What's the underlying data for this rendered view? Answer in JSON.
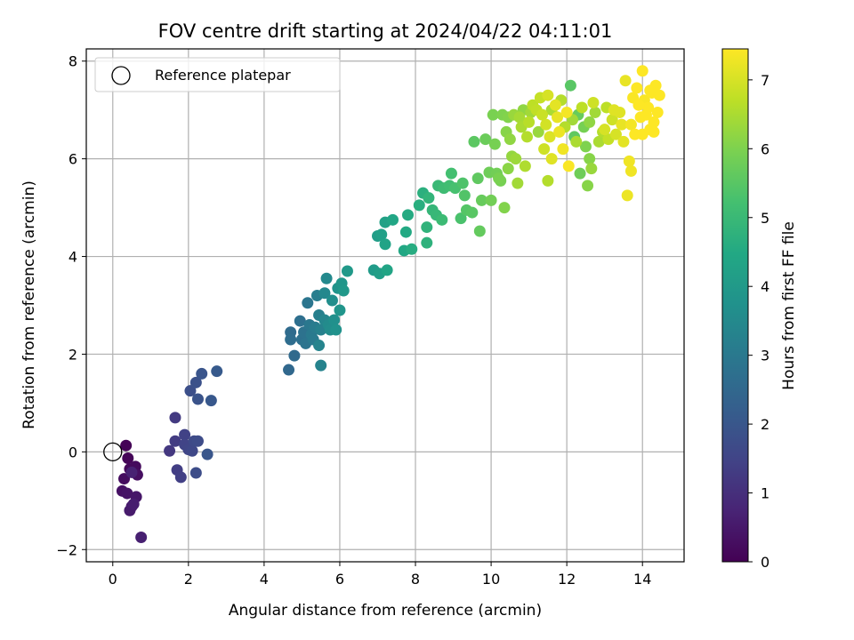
{
  "chart_data": {
    "type": "scatter",
    "title": "FOV centre drift starting at 2024/04/22 04:11:01",
    "xlabel": "Angular distance from reference (arcmin)",
    "ylabel": "Rotation from reference (arcmin)",
    "xlim": [
      -0.7,
      15.1
    ],
    "ylim": [
      -2.25,
      8.25
    ],
    "xticks": [
      0,
      2,
      4,
      6,
      8,
      10,
      12,
      14
    ],
    "yticks": [
      -2,
      0,
      2,
      4,
      6,
      8
    ],
    "grid": true,
    "legend": {
      "placement": "top-left",
      "entries": [
        "Reference platepar"
      ]
    },
    "reference_point": {
      "x": 0,
      "y": 0,
      "label": "Reference platepar"
    },
    "colorbar": {
      "label": "Hours from first FF file",
      "colormap": "viridis",
      "range": [
        0,
        7.45
      ],
      "ticks": [
        0,
        1,
        2,
        3,
        4,
        5,
        6,
        7
      ]
    },
    "series": [
      {
        "color_by": "hours",
        "points": [
          {
            "x": 0.35,
            "y": 0.13,
            "h": 0.05
          },
          {
            "x": 0.4,
            "y": -0.13,
            "h": 0.1
          },
          {
            "x": 0.45,
            "y": -0.35,
            "h": 0.15
          },
          {
            "x": 0.6,
            "y": -0.3,
            "h": 0.2
          },
          {
            "x": 0.3,
            "y": -0.55,
            "h": 0.25
          },
          {
            "x": 0.65,
            "y": -0.47,
            "h": 0.3
          },
          {
            "x": 0.25,
            "y": -0.8,
            "h": 0.35
          },
          {
            "x": 0.38,
            "y": -0.85,
            "h": 0.4
          },
          {
            "x": 0.62,
            "y": -0.92,
            "h": 0.45
          },
          {
            "x": 0.5,
            "y": -1.12,
            "h": 0.5
          },
          {
            "x": 0.45,
            "y": -1.2,
            "h": 0.55
          },
          {
            "x": 0.55,
            "y": -1.07,
            "h": 0.6
          },
          {
            "x": 0.75,
            "y": -1.75,
            "h": 0.65
          },
          {
            "x": 0.5,
            "y": -0.42,
            "h": 0.7
          },
          {
            "x": 1.5,
            "y": 0.02,
            "h": 1.2
          },
          {
            "x": 1.65,
            "y": 0.7,
            "h": 1.25
          },
          {
            "x": 1.65,
            "y": 0.22,
            "h": 1.3
          },
          {
            "x": 1.7,
            "y": -0.37,
            "h": 1.35
          },
          {
            "x": 1.8,
            "y": -0.52,
            "h": 1.4
          },
          {
            "x": 1.9,
            "y": 0.35,
            "h": 1.45
          },
          {
            "x": 1.9,
            "y": 0.15,
            "h": 1.5
          },
          {
            "x": 2.0,
            "y": 0.05,
            "h": 1.55
          },
          {
            "x": 2.1,
            "y": 0.02,
            "h": 1.6
          },
          {
            "x": 2.15,
            "y": 0.22,
            "h": 1.65
          },
          {
            "x": 2.25,
            "y": 0.22,
            "h": 1.7
          },
          {
            "x": 2.2,
            "y": -0.43,
            "h": 1.75
          },
          {
            "x": 2.05,
            "y": 1.25,
            "h": 1.8
          },
          {
            "x": 2.2,
            "y": 1.42,
            "h": 1.85
          },
          {
            "x": 2.25,
            "y": 1.08,
            "h": 1.9
          },
          {
            "x": 2.35,
            "y": 1.6,
            "h": 1.95
          },
          {
            "x": 2.5,
            "y": -0.05,
            "h": 2.0
          },
          {
            "x": 2.6,
            "y": 1.05,
            "h": 2.05
          },
          {
            "x": 2.75,
            "y": 1.65,
            "h": 2.1
          },
          {
            "x": 4.65,
            "y": 1.68,
            "h": 2.5
          },
          {
            "x": 4.8,
            "y": 1.97,
            "h": 2.55
          },
          {
            "x": 4.7,
            "y": 2.45,
            "h": 2.6
          },
          {
            "x": 4.7,
            "y": 2.3,
            "h": 2.65
          },
          {
            "x": 4.95,
            "y": 2.68,
            "h": 2.7
          },
          {
            "x": 5.0,
            "y": 2.3,
            "h": 2.75
          },
          {
            "x": 5.05,
            "y": 2.45,
            "h": 2.8
          },
          {
            "x": 5.1,
            "y": 2.22,
            "h": 2.85
          },
          {
            "x": 5.15,
            "y": 3.05,
            "h": 2.9
          },
          {
            "x": 5.2,
            "y": 2.6,
            "h": 2.95
          },
          {
            "x": 5.25,
            "y": 2.4,
            "h": 3.0
          },
          {
            "x": 5.3,
            "y": 2.3,
            "h": 3.05
          },
          {
            "x": 5.35,
            "y": 2.55,
            "h": 3.1
          },
          {
            "x": 5.4,
            "y": 3.2,
            "h": 3.15
          },
          {
            "x": 5.45,
            "y": 2.8,
            "h": 3.2
          },
          {
            "x": 5.5,
            "y": 2.5,
            "h": 3.25
          },
          {
            "x": 5.5,
            "y": 1.77,
            "h": 3.3
          },
          {
            "x": 5.45,
            "y": 2.18,
            "h": 3.35
          },
          {
            "x": 5.6,
            "y": 2.7,
            "h": 3.4
          },
          {
            "x": 5.6,
            "y": 3.25,
            "h": 3.45
          },
          {
            "x": 5.65,
            "y": 3.55,
            "h": 3.5
          },
          {
            "x": 5.7,
            "y": 2.6,
            "h": 3.55
          },
          {
            "x": 5.75,
            "y": 2.5,
            "h": 3.6
          },
          {
            "x": 5.8,
            "y": 3.1,
            "h": 3.65
          },
          {
            "x": 5.85,
            "y": 2.7,
            "h": 3.7
          },
          {
            "x": 5.9,
            "y": 2.5,
            "h": 3.75
          },
          {
            "x": 5.95,
            "y": 3.35,
            "h": 3.8
          },
          {
            "x": 6.0,
            "y": 2.9,
            "h": 3.85
          },
          {
            "x": 6.05,
            "y": 3.45,
            "h": 3.9
          },
          {
            "x": 6.1,
            "y": 3.3,
            "h": 3.95
          },
          {
            "x": 6.2,
            "y": 3.7,
            "h": 4.0
          },
          {
            "x": 6.9,
            "y": 3.72,
            "h": 4.05
          },
          {
            "x": 7.0,
            "y": 4.42,
            "h": 4.1
          },
          {
            "x": 7.05,
            "y": 3.65,
            "h": 4.15
          },
          {
            "x": 7.1,
            "y": 4.45,
            "h": 4.2
          },
          {
            "x": 7.2,
            "y": 4.7,
            "h": 4.25
          },
          {
            "x": 7.2,
            "y": 4.25,
            "h": 4.3
          },
          {
            "x": 7.25,
            "y": 3.72,
            "h": 4.35
          },
          {
            "x": 7.4,
            "y": 4.75,
            "h": 4.4
          },
          {
            "x": 7.7,
            "y": 4.12,
            "h": 4.45
          },
          {
            "x": 7.75,
            "y": 4.5,
            "h": 4.5
          },
          {
            "x": 7.8,
            "y": 4.85,
            "h": 4.55
          },
          {
            "x": 7.9,
            "y": 4.15,
            "h": 4.6
          },
          {
            "x": 8.1,
            "y": 5.05,
            "h": 4.65
          },
          {
            "x": 8.2,
            "y": 5.3,
            "h": 4.7
          },
          {
            "x": 8.3,
            "y": 4.28,
            "h": 4.75
          },
          {
            "x": 8.3,
            "y": 4.6,
            "h": 4.8
          },
          {
            "x": 8.35,
            "y": 5.2,
            "h": 4.85
          },
          {
            "x": 8.45,
            "y": 4.95,
            "h": 4.9
          },
          {
            "x": 8.55,
            "y": 4.85,
            "h": 4.95
          },
          {
            "x": 8.6,
            "y": 5.45,
            "h": 5.0
          },
          {
            "x": 8.7,
            "y": 4.75,
            "h": 5.05
          },
          {
            "x": 8.75,
            "y": 5.4,
            "h": 5.1
          },
          {
            "x": 8.9,
            "y": 5.45,
            "h": 5.15
          },
          {
            "x": 8.95,
            "y": 5.7,
            "h": 5.2
          },
          {
            "x": 9.05,
            "y": 5.4,
            "h": 5.25
          },
          {
            "x": 9.2,
            "y": 4.78,
            "h": 5.3
          },
          {
            "x": 9.25,
            "y": 5.5,
            "h": 5.35
          },
          {
            "x": 9.3,
            "y": 5.25,
            "h": 5.4
          },
          {
            "x": 9.35,
            "y": 4.95,
            "h": 5.45
          },
          {
            "x": 9.5,
            "y": 4.9,
            "h": 5.5
          },
          {
            "x": 9.55,
            "y": 6.35,
            "h": 5.55
          },
          {
            "x": 9.65,
            "y": 5.6,
            "h": 5.6
          },
          {
            "x": 9.7,
            "y": 4.52,
            "h": 5.65
          },
          {
            "x": 9.75,
            "y": 5.15,
            "h": 5.7
          },
          {
            "x": 9.85,
            "y": 6.4,
            "h": 5.75
          },
          {
            "x": 9.95,
            "y": 5.72,
            "h": 5.8
          },
          {
            "x": 10.0,
            "y": 5.15,
            "h": 5.85
          },
          {
            "x": 10.1,
            "y": 6.3,
            "h": 5.9
          },
          {
            "x": 10.2,
            "y": 5.6,
            "h": 5.95
          },
          {
            "x": 10.3,
            "y": 6.9,
            "h": 6.0
          },
          {
            "x": 10.35,
            "y": 5.0,
            "h": 6.05
          },
          {
            "x": 10.4,
            "y": 6.55,
            "h": 6.1
          },
          {
            "x": 10.45,
            "y": 5.8,
            "h": 6.15
          },
          {
            "x": 10.5,
            "y": 6.4,
            "h": 6.2
          },
          {
            "x": 10.55,
            "y": 6.05,
            "h": 6.25
          },
          {
            "x": 10.6,
            "y": 6.9,
            "h": 6.3
          },
          {
            "x": 10.65,
            "y": 6.0,
            "h": 6.35
          },
          {
            "x": 10.7,
            "y": 5.5,
            "h": 6.4
          },
          {
            "x": 10.75,
            "y": 6.85,
            "h": 6.45
          },
          {
            "x": 10.8,
            "y": 6.65,
            "h": 6.5
          },
          {
            "x": 10.9,
            "y": 5.85,
            "h": 6.55
          },
          {
            "x": 10.95,
            "y": 6.45,
            "h": 6.6
          },
          {
            "x": 11.0,
            "y": 6.75,
            "h": 6.65
          },
          {
            "x": 11.1,
            "y": 7.1,
            "h": 6.7
          },
          {
            "x": 11.2,
            "y": 7.0,
            "h": 6.75
          },
          {
            "x": 11.3,
            "y": 7.25,
            "h": 6.8
          },
          {
            "x": 11.35,
            "y": 6.9,
            "h": 6.85
          },
          {
            "x": 11.4,
            "y": 6.2,
            "h": 6.9
          },
          {
            "x": 11.45,
            "y": 6.7,
            "h": 6.95
          },
          {
            "x": 11.5,
            "y": 7.3,
            "h": 7.0
          },
          {
            "x": 11.55,
            "y": 6.45,
            "h": 7.05
          },
          {
            "x": 11.6,
            "y": 6.0,
            "h": 7.1
          },
          {
            "x": 11.7,
            "y": 7.1,
            "h": 7.15
          },
          {
            "x": 11.75,
            "y": 6.85,
            "h": 7.2
          },
          {
            "x": 11.8,
            "y": 6.55,
            "h": 7.25
          },
          {
            "x": 11.9,
            "y": 6.2,
            "h": 7.3
          },
          {
            "x": 12.0,
            "y": 6.95,
            "h": 7.35
          },
          {
            "x": 12.05,
            "y": 5.85,
            "h": 7.4
          },
          {
            "x": 12.1,
            "y": 7.5,
            "h": 5.5
          },
          {
            "x": 12.2,
            "y": 6.45,
            "h": 5.6
          },
          {
            "x": 12.3,
            "y": 6.9,
            "h": 5.7
          },
          {
            "x": 12.35,
            "y": 5.7,
            "h": 5.8
          },
          {
            "x": 12.45,
            "y": 6.65,
            "h": 5.9
          },
          {
            "x": 12.5,
            "y": 6.25,
            "h": 6.0
          },
          {
            "x": 12.55,
            "y": 5.45,
            "h": 6.1
          },
          {
            "x": 12.6,
            "y": 6.75,
            "h": 6.2
          },
          {
            "x": 12.65,
            "y": 5.8,
            "h": 6.3
          },
          {
            "x": 12.75,
            "y": 6.95,
            "h": 6.4
          },
          {
            "x": 12.85,
            "y": 6.35,
            "h": 6.5
          },
          {
            "x": 12.95,
            "y": 6.55,
            "h": 6.6
          },
          {
            "x": 13.05,
            "y": 7.05,
            "h": 6.7
          },
          {
            "x": 13.1,
            "y": 6.4,
            "h": 6.8
          },
          {
            "x": 13.2,
            "y": 6.8,
            "h": 6.9
          },
          {
            "x": 13.3,
            "y": 6.5,
            "h": 7.0
          },
          {
            "x": 13.4,
            "y": 6.95,
            "h": 7.1
          },
          {
            "x": 13.5,
            "y": 6.35,
            "h": 7.15
          },
          {
            "x": 13.55,
            "y": 7.6,
            "h": 7.2
          },
          {
            "x": 13.6,
            "y": 5.25,
            "h": 7.25
          },
          {
            "x": 13.65,
            "y": 5.95,
            "h": 7.3
          },
          {
            "x": 13.7,
            "y": 6.7,
            "h": 7.35
          },
          {
            "x": 13.75,
            "y": 7.25,
            "h": 7.4
          },
          {
            "x": 13.8,
            "y": 6.5,
            "h": 7.45
          },
          {
            "x": 13.85,
            "y": 7.45,
            "h": 7.45
          },
          {
            "x": 13.95,
            "y": 6.85,
            "h": 7.45
          },
          {
            "x": 14.0,
            "y": 6.5,
            "h": 7.45
          },
          {
            "x": 14.05,
            "y": 7.2,
            "h": 7.4
          },
          {
            "x": 14.1,
            "y": 6.9,
            "h": 7.45
          },
          {
            "x": 14.15,
            "y": 7.05,
            "h": 7.45
          },
          {
            "x": 14.2,
            "y": 6.6,
            "h": 7.45
          },
          {
            "x": 14.25,
            "y": 7.35,
            "h": 7.45
          },
          {
            "x": 14.3,
            "y": 6.75,
            "h": 7.45
          },
          {
            "x": 14.35,
            "y": 7.5,
            "h": 7.45
          },
          {
            "x": 14.4,
            "y": 6.95,
            "h": 7.45
          },
          {
            "x": 14.45,
            "y": 7.3,
            "h": 7.45
          },
          {
            "x": 11.6,
            "y": 7.0,
            "h": 6.5
          },
          {
            "x": 11.85,
            "y": 7.2,
            "h": 6.6
          },
          {
            "x": 12.15,
            "y": 6.8,
            "h": 6.4
          },
          {
            "x": 12.4,
            "y": 7.05,
            "h": 6.7
          },
          {
            "x": 12.7,
            "y": 7.15,
            "h": 6.9
          },
          {
            "x": 13.0,
            "y": 6.6,
            "h": 7.0
          },
          {
            "x": 13.25,
            "y": 7.0,
            "h": 7.1
          },
          {
            "x": 13.45,
            "y": 6.7,
            "h": 7.2
          },
          {
            "x": 11.25,
            "y": 6.55,
            "h": 6.3
          },
          {
            "x": 11.05,
            "y": 6.95,
            "h": 6.4
          },
          {
            "x": 10.85,
            "y": 7.0,
            "h": 6.2
          },
          {
            "x": 11.95,
            "y": 6.65,
            "h": 6.6
          },
          {
            "x": 12.25,
            "y": 6.35,
            "h": 6.5
          },
          {
            "x": 13.7,
            "y": 5.75,
            "h": 7.3
          },
          {
            "x": 14.0,
            "y": 7.8,
            "h": 7.45
          },
          {
            "x": 14.2,
            "y": 7.4,
            "h": 7.45
          },
          {
            "x": 14.3,
            "y": 6.55,
            "h": 7.45
          },
          {
            "x": 13.9,
            "y": 7.1,
            "h": 7.45
          },
          {
            "x": 12.6,
            "y": 6.0,
            "h": 6.1
          },
          {
            "x": 10.25,
            "y": 5.55,
            "h": 5.9
          },
          {
            "x": 10.05,
            "y": 6.9,
            "h": 5.95
          },
          {
            "x": 10.15,
            "y": 5.7,
            "h": 5.85
          },
          {
            "x": 10.45,
            "y": 6.85,
            "h": 6.05
          },
          {
            "x": 11.5,
            "y": 5.55,
            "h": 6.6
          }
        ]
      }
    ]
  }
}
